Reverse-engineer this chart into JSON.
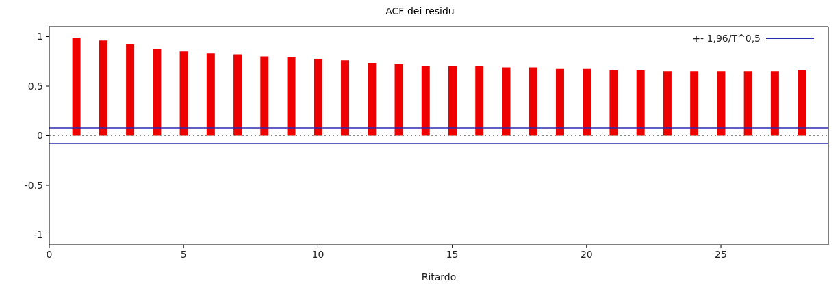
{
  "chart_data": {
    "type": "bar",
    "title": "ACF dei residu",
    "xlabel": "Ritardo",
    "x": [
      1,
      2,
      3,
      4,
      5,
      6,
      7,
      8,
      9,
      10,
      11,
      12,
      13,
      14,
      15,
      16,
      17,
      18,
      19,
      20,
      21,
      22,
      23,
      24,
      25,
      26,
      27,
      28
    ],
    "values": [
      0.99,
      0.96,
      0.92,
      0.875,
      0.85,
      0.83,
      0.82,
      0.8,
      0.79,
      0.775,
      0.76,
      0.735,
      0.72,
      0.705,
      0.705,
      0.705,
      0.69,
      0.69,
      0.675,
      0.675,
      0.66,
      0.66,
      0.65,
      0.65,
      0.65,
      0.65,
      0.65,
      0.66
    ],
    "color": "#ee0000",
    "xlim": [
      0,
      29
    ],
    "xticks": [
      0,
      5,
      10,
      15,
      20,
      25
    ],
    "ylim": [
      -1.1,
      1.1
    ],
    "yticks": [
      -1,
      -0.5,
      0,
      0.5,
      1
    ],
    "ref_lines": [
      {
        "axis": "y",
        "value": 0.08,
        "label": "+- 1,96/T^0,5",
        "color": "#2a2ab0",
        "line_style": "solid"
      },
      {
        "axis": "y",
        "value": -0.08,
        "color": "#2a2ab0",
        "line_style": "solid"
      },
      {
        "axis": "y",
        "value": 0,
        "color": "#888888",
        "line_style": "dotted"
      }
    ],
    "legend": "top right"
  }
}
